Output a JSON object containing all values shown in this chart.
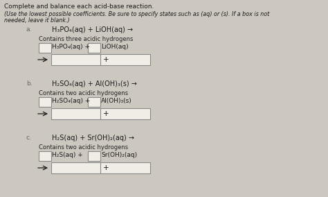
{
  "background_color": "#cdc8bf",
  "title_line1": "Complete and balance each acid-base reaction.",
  "title_line2": "(Use the lowest possible coefficients. Be sure to specify states such as (aq) or (s). If a box is not",
  "title_line3": "needed, leave it blank.)",
  "sections": [
    {
      "label": "a.",
      "equation": "H₃PO₄(aq) + LiOH(aq) →",
      "hint": "Contains three acidic hydrogens",
      "reactant1_label": "H₃PO₄(aq) +",
      "reactant2_label": "LiOH(aq)"
    },
    {
      "label": "b.",
      "equation": "H₂SO₄(aq) + Al(OH)₃(s) →",
      "hint": "Contains two acidic hydrogens",
      "reactant1_label": "H₂SO₄(aq) +",
      "reactant2_label": "Al(OH)₃(s)"
    },
    {
      "label": "c.",
      "equation": "H₂S(aq) + Sr(OH)₂(aq) →",
      "hint": "Contains two acidic hydrogens",
      "reactant1_label": "H₂S(aq) +",
      "reactant2_label": "Sr(OH)₂(aq)"
    }
  ],
  "box_color": "#f0ece6",
  "box_edge_color": "#888888",
  "text_color": "#1a1a1a",
  "hint_color": "#222222",
  "label_color": "#444444",
  "section_label_color": "#666666"
}
